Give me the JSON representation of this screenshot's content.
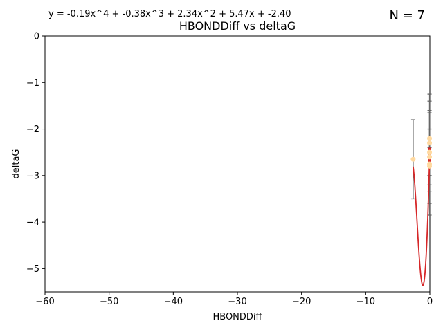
{
  "annotations": {
    "equation": "y = -0.19x^4 + -0.38x^3 + 2.34x^2 + 5.47x + -2.40",
    "n_label": "N = 7"
  },
  "colors": {
    "fit_line": "#d62728",
    "points": "#ffd9a0",
    "errorbars": "#666666"
  },
  "chart_data": {
    "type": "scatter",
    "title": "HBONDDiff vs deltaG",
    "xlabel": "HBONDDiff",
    "ylabel": "deltaG",
    "xlim": [
      -60,
      0
    ],
    "ylim": [
      -5.5,
      0
    ],
    "xticks": [
      -60,
      -50,
      -40,
      -30,
      -20,
      -10,
      0
    ],
    "xtick_labels": [
      "−60",
      "−50",
      "−40",
      "−30",
      "−20",
      "−10",
      "0"
    ],
    "yticks": [
      0,
      -1,
      -2,
      -3,
      -4,
      -5
    ],
    "ytick_labels": [
      "0",
      "−1",
      "−2",
      "−3",
      "−4",
      "−5"
    ],
    "grid": false,
    "points": [
      {
        "x": -2.6,
        "y": -2.65,
        "err": 0.85
      },
      {
        "x": -0.05,
        "y": -2.3,
        "err": 1.05
      },
      {
        "x": -0.05,
        "y": -2.5,
        "err": 0.5
      },
      {
        "x": -0.05,
        "y": -2.6,
        "err": 1.0
      },
      {
        "x": -0.05,
        "y": -2.75,
        "err": 1.1
      },
      {
        "x": -0.05,
        "y": -2.8,
        "err": 0.4
      },
      {
        "x": -0.05,
        "y": -2.2,
        "err": 0.8
      }
    ],
    "fit": {
      "kind": "polynomial",
      "degree": 4,
      "coefficients": [
        -0.19,
        -0.38,
        2.34,
        5.47,
        -2.4
      ],
      "x_range": [
        -2.6,
        0
      ]
    }
  }
}
